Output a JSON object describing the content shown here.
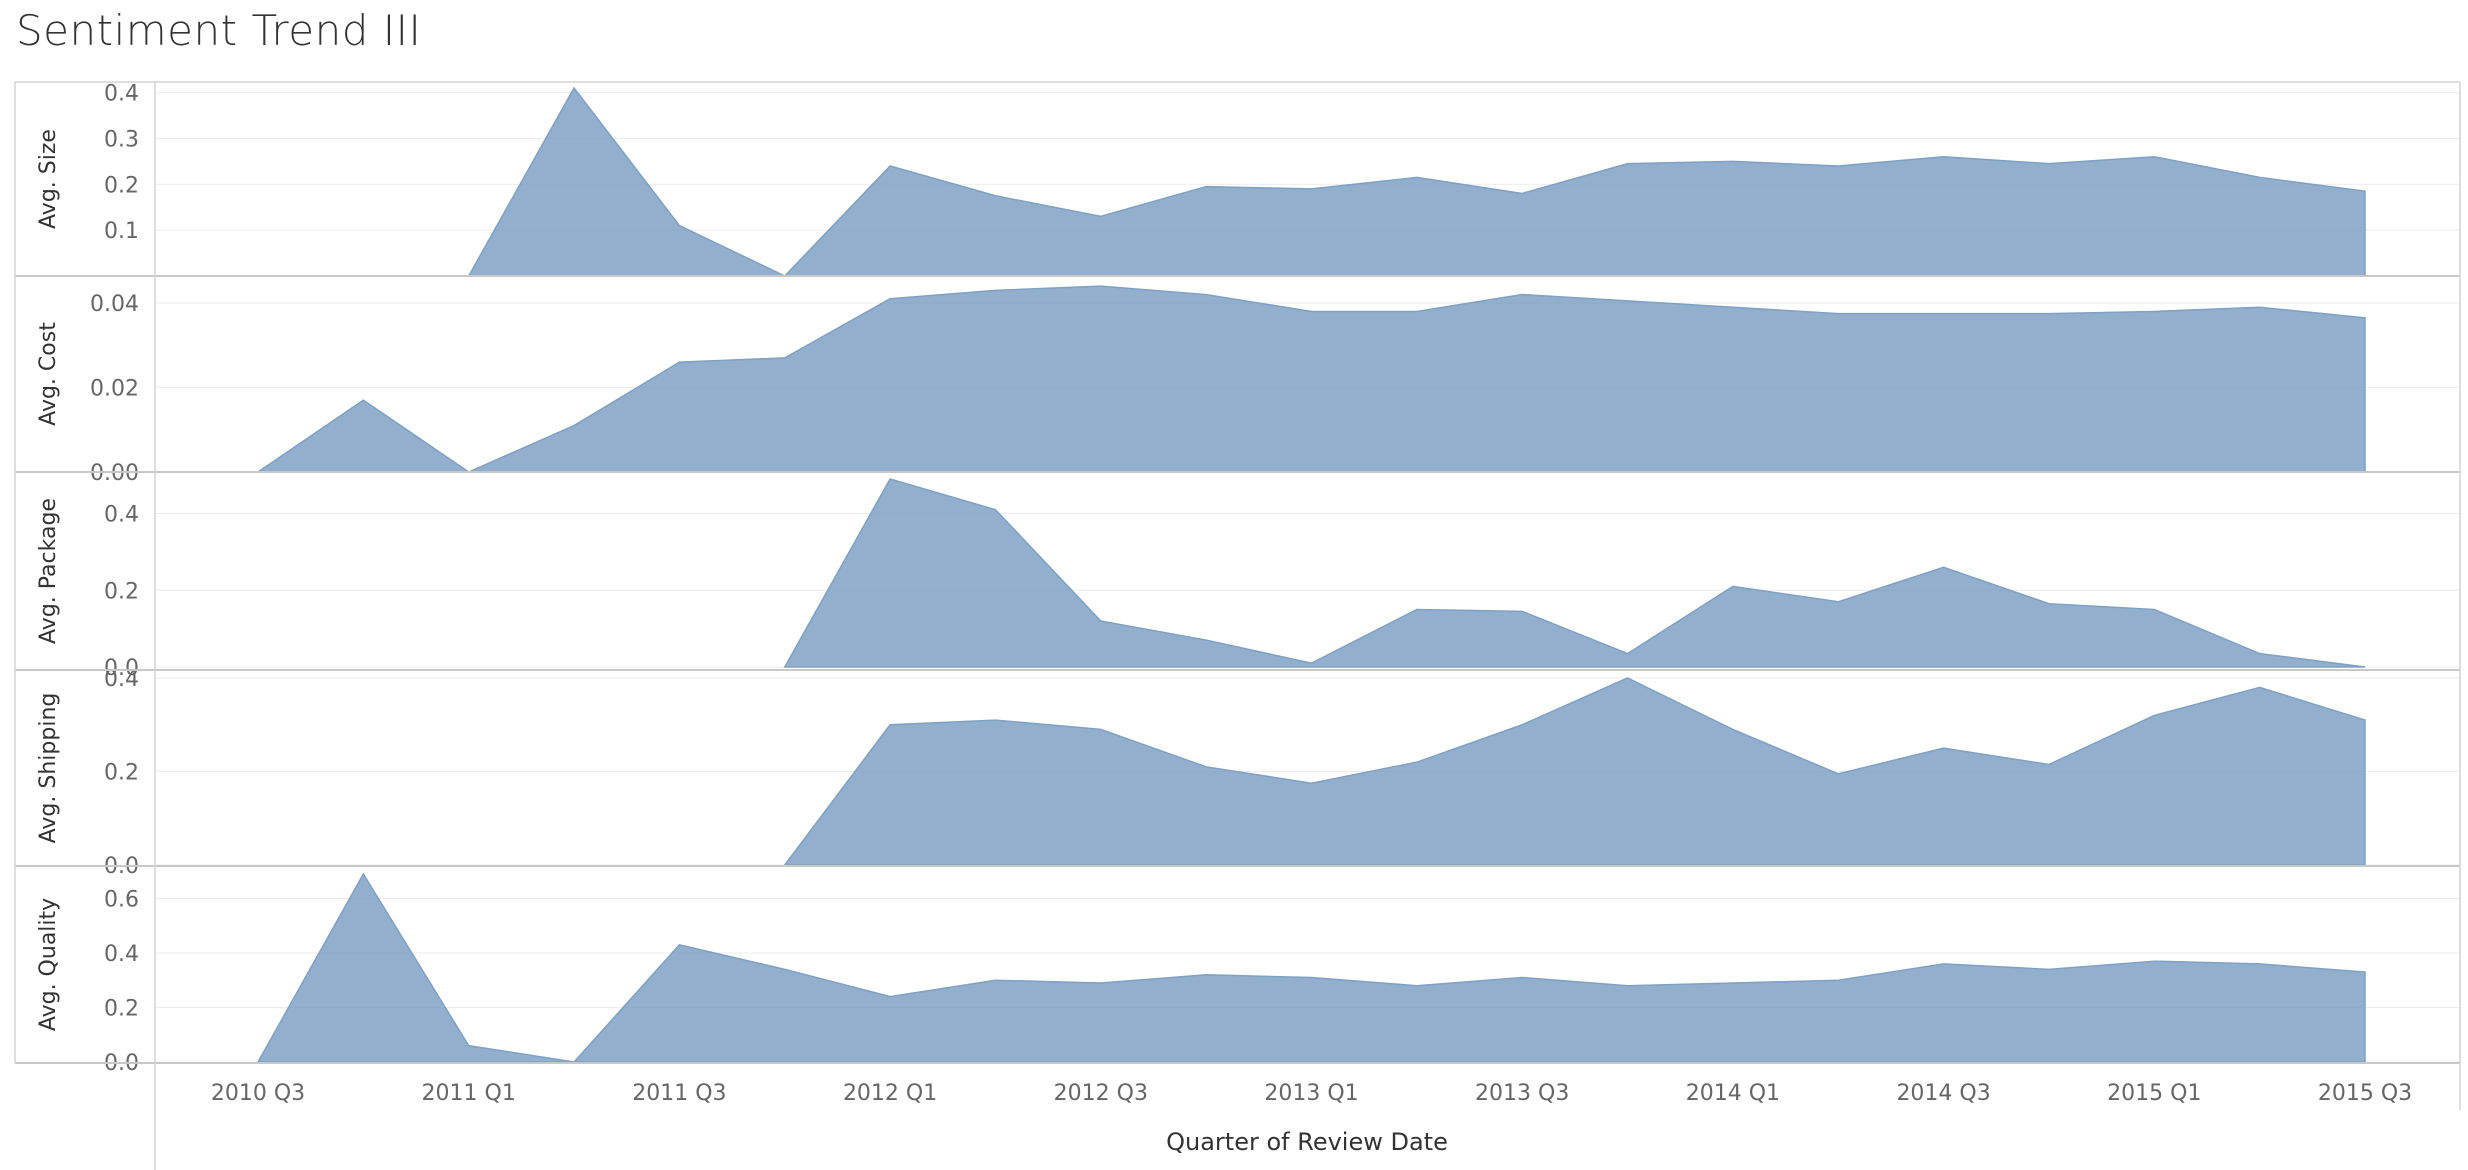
{
  "title": "Sentiment Trend III",
  "chart_data": {
    "type": "area",
    "title": "Sentiment Trend III",
    "xlabel": "Quarter of Review Date",
    "x": [
      "2010 Q3",
      "2010 Q4",
      "2011 Q1",
      "2011 Q2",
      "2011 Q3",
      "2011 Q4",
      "2012 Q1",
      "2012 Q2",
      "2012 Q3",
      "2012 Q4",
      "2013 Q1",
      "2013 Q2",
      "2013 Q3",
      "2013 Q4",
      "2014 Q1",
      "2014 Q2",
      "2014 Q3",
      "2014 Q4",
      "2015 Q1",
      "2015 Q2",
      "2015 Q3"
    ],
    "x_tick_labels": [
      "2010 Q3",
      "2011 Q1",
      "2011 Q3",
      "2012 Q1",
      "2012 Q3",
      "2013 Q1",
      "2013 Q3",
      "2014 Q1",
      "2014 Q3",
      "2015 Q1",
      "2015 Q3"
    ],
    "color": "#7fa1c4",
    "grid": true,
    "series": [
      {
        "name": "Avg. Size",
        "ylim": [
          0,
          0.42
        ],
        "yticks": [
          0.1,
          0.2,
          0.3,
          0.4
        ],
        "ytick_labels": [
          "0.1",
          "0.2",
          "0.3",
          "0.4"
        ],
        "values": [
          null,
          null,
          0.0,
          0.41,
          0.11,
          0.0,
          0.24,
          0.175,
          0.13,
          0.195,
          0.19,
          0.215,
          0.18,
          0.245,
          0.25,
          0.24,
          0.26,
          0.245,
          0.26,
          0.215,
          0.185
        ]
      },
      {
        "name": "Avg. Cost",
        "ylim": [
          -0.004,
          0.046
        ],
        "yticks": [
          0.0,
          0.02,
          0.04
        ],
        "ytick_labels": [
          "0.00",
          "0.02",
          "0.04"
        ],
        "values": [
          0.0,
          0.017,
          0.0,
          0.011,
          0.026,
          0.027,
          0.041,
          0.043,
          0.044,
          0.042,
          0.038,
          0.038,
          0.042,
          0.0405,
          0.039,
          0.0375,
          0.0375,
          0.0375,
          0.038,
          0.039,
          0.0365
        ]
      },
      {
        "name": "Avg. Package",
        "ylim": [
          -0.05,
          0.5
        ],
        "yticks": [
          0.0,
          0.2,
          0.4
        ],
        "ytick_labels": [
          "0.0",
          "0.2",
          "0.4"
        ],
        "values": [
          null,
          null,
          null,
          null,
          null,
          0.0,
          0.49,
          0.41,
          0.12,
          0.07,
          0.01,
          0.15,
          0.145,
          0.035,
          0.21,
          0.17,
          0.26,
          0.165,
          0.15,
          0.035,
          0.0
        ]
      },
      {
        "name": "Avg. Shipping",
        "ylim": [
          -0.04,
          0.43
        ],
        "yticks": [
          0.0,
          0.2,
          0.4
        ],
        "ytick_labels": [
          "0.0",
          "0.2",
          "0.4"
        ],
        "values": [
          null,
          null,
          null,
          null,
          null,
          0.0,
          0.3,
          0.31,
          0.29,
          0.21,
          0.175,
          0.22,
          0.3,
          0.4,
          0.29,
          0.195,
          0.25,
          0.215,
          0.32,
          0.38,
          0.31
        ]
      },
      {
        "name": "Avg. Quality",
        "ylim": [
          -0.06,
          0.72
        ],
        "yticks": [
          0.0,
          0.2,
          0.4,
          0.6
        ],
        "ytick_labels": [
          "0.0",
          "0.2",
          "0.4",
          "0.6"
        ],
        "values": [
          0.0,
          0.69,
          0.06,
          0.0,
          0.43,
          0.34,
          0.24,
          0.3,
          0.29,
          0.32,
          0.31,
          0.28,
          0.31,
          0.28,
          0.29,
          0.3,
          0.36,
          0.34,
          0.37,
          0.36,
          0.33
        ]
      }
    ]
  }
}
